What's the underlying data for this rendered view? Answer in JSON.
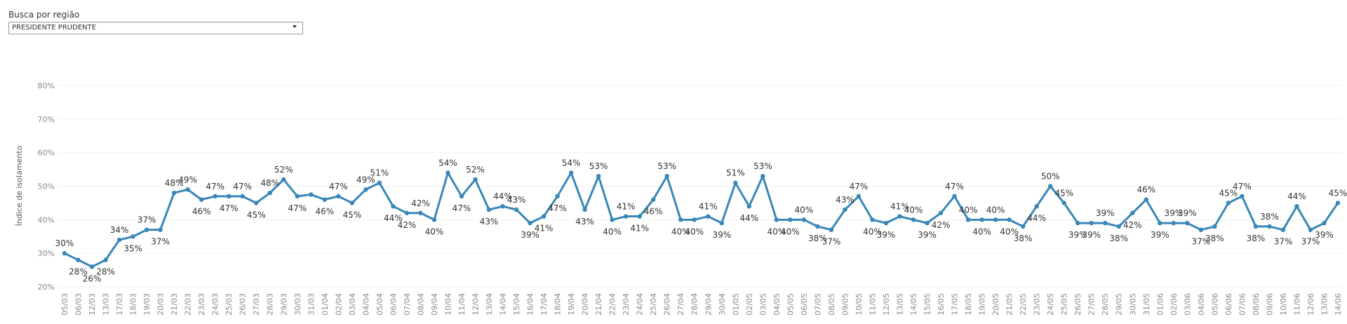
{
  "filter": {
    "label": "Busca por região",
    "selected": "PRESIDENTE PRUDENTE"
  },
  "chart_data": {
    "type": "line",
    "ylabel": "Índice de isolamento",
    "ylim": [
      20,
      80
    ],
    "yticks": [
      "20%",
      "30%",
      "40%",
      "50%",
      "60%",
      "70%",
      "80%"
    ],
    "grid": true,
    "color": "#3a87b7",
    "x": [
      "05/03",
      "06/03",
      "12/03",
      "13/03",
      "17/03",
      "18/03",
      "19/03",
      "20/03",
      "21/03",
      "22/03",
      "23/03",
      "24/03",
      "25/03",
      "26/03",
      "27/03",
      "28/03",
      "29/03",
      "30/03",
      "31/03",
      "01/04",
      "02/04",
      "03/04",
      "04/04",
      "05/04",
      "06/04",
      "07/04",
      "08/04",
      "09/04",
      "10/04",
      "11/04",
      "12/04",
      "13/04",
      "14/04",
      "15/04",
      "16/04",
      "17/04",
      "18/04",
      "19/04",
      "20/04",
      "21/04",
      "22/04",
      "23/04",
      "24/04",
      "25/04",
      "26/04",
      "27/04",
      "28/04",
      "29/04",
      "30/04",
      "01/05",
      "02/05",
      "03/05",
      "04/05",
      "05/05",
      "06/05",
      "07/05",
      "08/05",
      "09/05",
      "10/05",
      "11/05",
      "12/05",
      "13/05",
      "14/05",
      "15/05",
      "16/05",
      "17/05",
      "18/05",
      "19/05",
      "20/05",
      "21/05",
      "22/05",
      "23/05",
      "24/05",
      "25/05",
      "26/05",
      "27/05",
      "28/05",
      "29/05",
      "30/05",
      "31/05",
      "01/06",
      "02/06",
      "03/06",
      "04/06",
      "05/06",
      "06/06",
      "07/06",
      "08/06",
      "09/06",
      "10/06",
      "11/06",
      "12/06",
      "13/06",
      "14/06"
    ],
    "values": [
      30,
      28,
      26,
      28,
      34,
      35,
      37,
      37,
      48,
      49,
      46,
      47,
      47,
      47,
      45,
      48,
      52,
      47,
      47.5,
      46,
      47,
      45,
      49,
      51,
      44,
      42,
      42,
      40,
      54,
      47,
      52,
      43,
      44,
      43,
      39,
      41,
      47,
      54,
      43,
      53,
      40,
      41,
      41,
      46,
      53,
      40,
      40,
      41,
      39,
      51,
      44,
      53,
      40,
      40,
      40,
      38,
      37,
      43,
      47,
      40,
      39,
      41,
      40,
      39,
      42,
      47,
      40,
      40,
      40,
      40,
      38,
      44,
      50,
      45,
      39,
      39,
      39,
      38,
      42,
      46,
      39,
      39,
      39,
      37,
      38,
      45,
      47,
      38,
      38,
      37,
      44,
      37,
      39,
      45
    ],
    "labels": [
      "30%",
      "28%",
      "26%",
      "28%",
      "34%",
      "35%",
      "37%",
      "37%",
      "48%",
      "49%",
      "46%",
      "47%",
      "47%",
      "47%",
      "45%",
      "48%",
      "52%",
      "47%",
      "",
      "46%",
      "47%",
      "45%",
      "49%",
      "51%",
      "44%",
      "42%",
      "42%",
      "40%",
      "54%",
      "47%",
      "52%",
      "43%",
      "44%",
      "43%",
      "39%",
      "41%",
      "47%",
      "54%",
      "43%",
      "53%",
      "40%",
      "41%",
      "41%",
      "46%",
      "53%",
      "40%",
      "40%",
      "41%",
      "39%",
      "51%",
      "44%",
      "53%",
      "40%",
      "40%",
      "40%",
      "38%",
      "37%",
      "43%",
      "47%",
      "40%",
      "39%",
      "41%",
      "40%",
      "39%",
      "42%",
      "47%",
      "40%",
      "40%",
      "40%",
      "40%",
      "38%",
      "44%",
      "50%",
      "45%",
      "39%",
      "39%",
      "39%",
      "38%",
      "42%",
      "46%",
      "39%",
      "39%",
      "39%",
      "37%",
      "38%",
      "45%",
      "47%",
      "38%",
      "38%",
      "37%",
      "44%",
      "37%",
      "39%",
      "45%"
    ],
    "label_pos": [
      "a",
      "b",
      "b",
      "b",
      "a",
      "b",
      "a",
      "b",
      "a",
      "a",
      "b",
      "a",
      "b",
      "a",
      "b",
      "a",
      "a",
      "b",
      "",
      "b",
      "a",
      "b",
      "a",
      "a",
      "b",
      "b",
      "a",
      "b",
      "a",
      "b",
      "a",
      "b",
      "a",
      "a",
      "b",
      "b",
      "b",
      "a",
      "b",
      "a",
      "b",
      "a",
      "",
      "b",
      "a",
      "b",
      "b",
      "a",
      "b",
      "a",
      "b",
      "a",
      "b",
      "b",
      "a",
      "b",
      "b",
      "a",
      "a",
      "b",
      "b",
      "a",
      "a",
      "b",
      "b",
      "a",
      "a",
      "b",
      "a",
      "b",
      "b",
      "b",
      "a",
      "a",
      "b",
      "b",
      "a",
      "b",
      "b",
      "a",
      "b",
      "a",
      "a",
      "b",
      "b",
      "a",
      "a",
      "b",
      "a",
      "b",
      "a",
      "b",
      "b",
      "a"
    ]
  }
}
